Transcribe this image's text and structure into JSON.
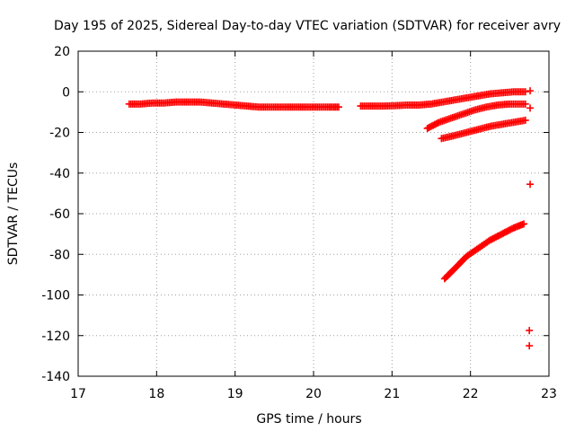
{
  "chart_data": {
    "type": "scatter",
    "title": "Day 195 of 2025, Sidereal Day-to-day VTEC variation (SDTVAR) for receiver avry",
    "xlabel": "GPS time / hours",
    "ylabel": "SDTVAR / TECUs",
    "xlim": [
      17,
      23
    ],
    "ylim": [
      -140,
      20
    ],
    "xticks": [
      17,
      18,
      19,
      20,
      21,
      22,
      23
    ],
    "yticks": [
      -140,
      -120,
      -100,
      -80,
      -60,
      -40,
      -20,
      0,
      20
    ],
    "grid": true,
    "marker": "+",
    "color": "#ff0000",
    "series": [
      {
        "segments": [
          {
            "x": [
              17.65,
              17.8,
              17.95,
              18.1,
              18.25,
              18.4,
              18.55,
              18.7,
              18.85,
              19.0,
              19.15,
              19.3,
              19.45,
              19.6,
              19.75,
              19.9,
              20.05,
              20.2,
              20.32
            ],
            "y": [
              -6,
              -6,
              -5.5,
              -5.5,
              -5,
              -5,
              -5,
              -5.5,
              -6,
              -6.5,
              -7,
              -7.5,
              -7.5,
              -7.5,
              -7.5,
              -7.5,
              -7.5,
              -7.5,
              -7.5
            ]
          },
          {
            "x": [
              20.6,
              20.75,
              20.9,
              21.05,
              21.2,
              21.35,
              21.5,
              21.65,
              21.8,
              21.95,
              22.1,
              22.25,
              22.4,
              22.55,
              22.7
            ],
            "y": [
              -7,
              -7,
              -7,
              -6.8,
              -6.5,
              -6.5,
              -6,
              -5,
              -4,
              -3,
              -2,
              -1,
              -0.5,
              0,
              0
            ]
          },
          {
            "x": [
              21.45,
              21.6,
              21.75,
              21.9,
              22.05,
              22.2,
              22.35,
              22.5,
              22.7
            ],
            "y": [
              -18,
              -15,
              -13,
              -11,
              -9,
              -7.5,
              -6.5,
              -6,
              -6
            ]
          },
          {
            "x": [
              21.63,
              21.8,
              21.95,
              22.1,
              22.25,
              22.4,
              22.55,
              22.7
            ],
            "y": [
              -23,
              -21.5,
              -20,
              -18.5,
              -17,
              -16,
              -15,
              -14
            ]
          },
          {
            "x": [
              21.67,
              21.8,
              21.95,
              22.1,
              22.25,
              22.4,
              22.55,
              22.68
            ],
            "y": [
              -92,
              -87,
              -81,
              -77,
              -73,
              -70,
              -67,
              -65
            ]
          },
          {
            "x": [
              22.76
            ],
            "y": [
              0.5
            ]
          },
          {
            "x": [
              22.76
            ],
            "y": [
              -8
            ]
          },
          {
            "x": [
              22.76
            ],
            "y": [
              -45.5
            ]
          },
          {
            "x": [
              22.75
            ],
            "y": [
              -117.5
            ]
          },
          {
            "x": [
              22.75
            ],
            "y": [
              -125
            ]
          }
        ]
      }
    ]
  }
}
